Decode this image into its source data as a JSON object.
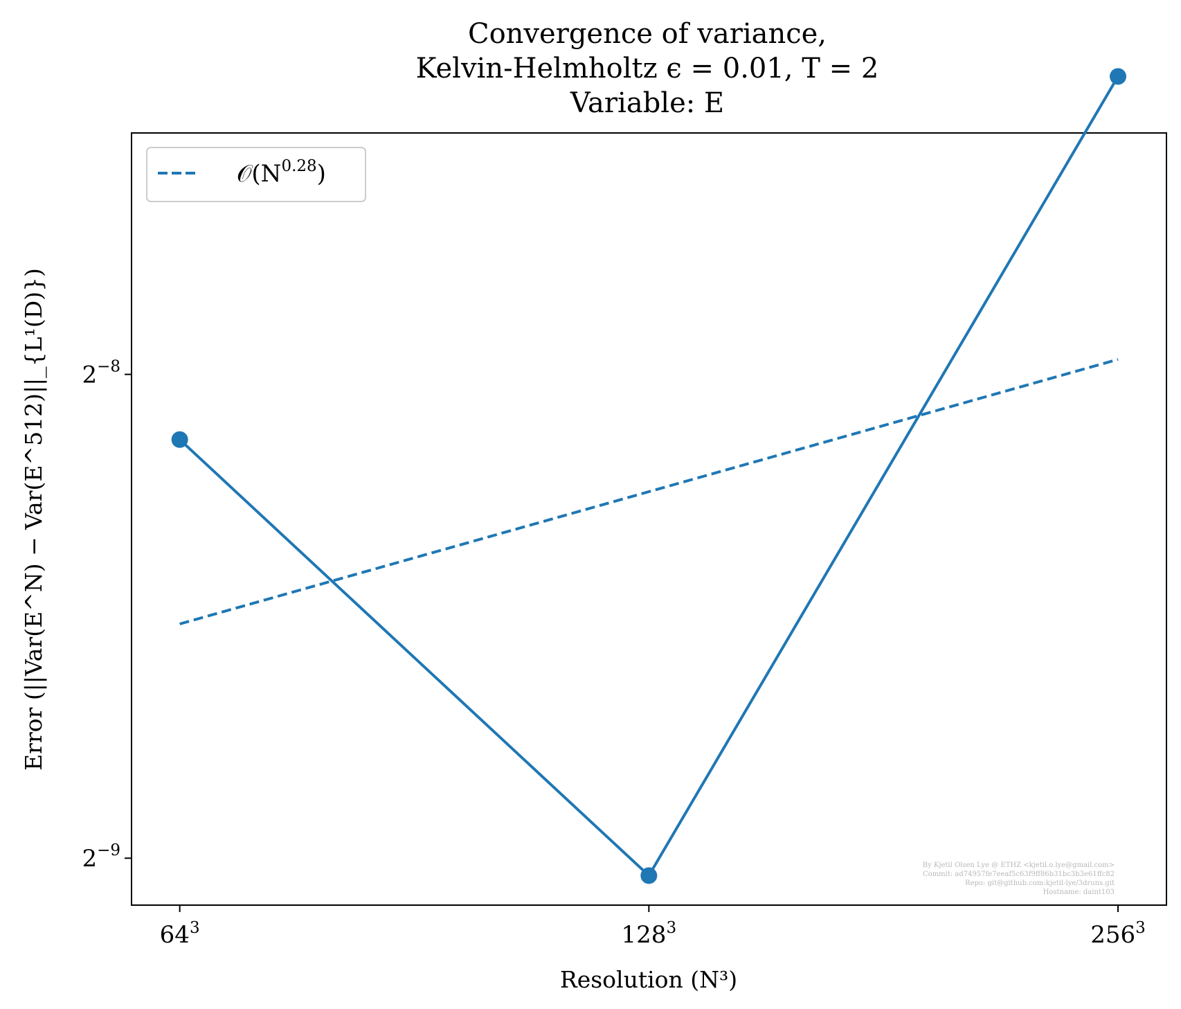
{
  "chart_data": {
    "type": "line",
    "title": [
      "Convergence of variance,",
      "Kelvin-Helmholtz ϵ = 0.01, T = 2",
      "Variable: E"
    ],
    "xlabel": "Resolution (N³)",
    "ylabel": "Error (||Var(E^N) − Var(E^512)||_{L¹(D)})",
    "x_scale": "log2",
    "y_scale": "log2",
    "x_ticks": [
      {
        "value": 64,
        "base": "64",
        "exp": "3"
      },
      {
        "value": 128,
        "base": "128",
        "exp": "3"
      },
      {
        "value": 256,
        "base": "256",
        "exp": "3"
      }
    ],
    "y_ticks": [
      {
        "value": 0.00390625,
        "base": "2",
        "exp": "−8"
      },
      {
        "value": 0.001953125,
        "base": "2",
        "exp": "−9"
      }
    ],
    "xlim": [
      59.6,
      275
    ],
    "ylim_log2": [
      -9.097,
      -7.501
    ],
    "series": [
      {
        "style": "solid",
        "marker": "circle",
        "color": "#1f77b4",
        "x": [
          64,
          128,
          256
        ],
        "y": [
          0.003558,
          0.001905,
          0.005986
        ]
      },
      {
        "name": "O(N^0.28)",
        "style": "dashed",
        "color": "#1f77b4",
        "x": [
          64,
          256
        ],
        "y": [
          0.002732,
          0.003991
        ]
      }
    ],
    "legend": {
      "location": "top-left",
      "entries": [
        {
          "label_main": "𝒪(N",
          "label_exp": "0.28",
          "label_tail": ")"
        }
      ]
    },
    "grid": false
  },
  "watermark": [
    "By Kjetil Olsen Lye @ ETHZ <kjetil.o.lye@gmail.com>",
    "Commit: ad74957fe7eeaf5c63f9ff86b31bc3b3e61ffc82",
    "Repo: git@github.com:kjetil-lye/3druns.git",
    "Hostname: daint103"
  ]
}
